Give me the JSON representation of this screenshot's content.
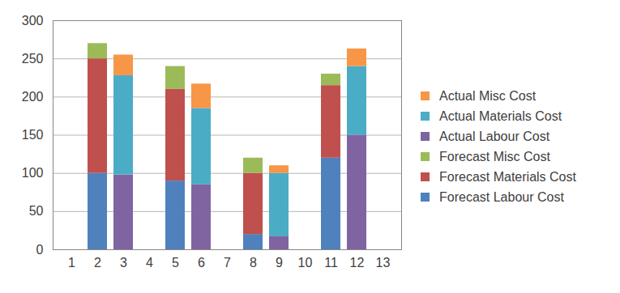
{
  "chart_data": {
    "type": "bar",
    "stacked": true,
    "grid": true,
    "legend": "right",
    "categories": [
      "1",
      "2",
      "3",
      "4",
      "5",
      "6",
      "7",
      "8",
      "9",
      "10",
      "11",
      "12",
      "13"
    ],
    "ylim": [
      0,
      300
    ],
    "yticks": [
      0,
      50,
      100,
      150,
      200,
      250,
      300
    ],
    "series": [
      {
        "name": "Forecast Labour Cost",
        "color": "#4f81bd",
        "values": [
          null,
          100,
          null,
          null,
          90,
          null,
          null,
          20,
          null,
          null,
          120,
          null,
          null
        ]
      },
      {
        "name": "Forecast Materials Cost",
        "color": "#c0504d",
        "values": [
          null,
          150,
          null,
          null,
          120,
          null,
          null,
          80,
          null,
          null,
          95,
          null,
          null
        ]
      },
      {
        "name": "Forecast Misc Cost",
        "color": "#9bbb59",
        "values": [
          null,
          20,
          null,
          null,
          30,
          null,
          null,
          20,
          null,
          null,
          15,
          null,
          null
        ]
      },
      {
        "name": "Actual Labour Cost",
        "color": "#8064a2",
        "values": [
          null,
          null,
          98,
          null,
          null,
          85,
          null,
          null,
          17,
          null,
          null,
          150,
          null
        ]
      },
      {
        "name": "Actual Materials Cost",
        "color": "#4bacc6",
        "values": [
          null,
          null,
          130,
          null,
          null,
          100,
          null,
          null,
          83,
          null,
          null,
          90,
          null
        ]
      },
      {
        "name": "Actual Misc Cost",
        "color": "#f79646",
        "values": [
          null,
          null,
          27,
          null,
          null,
          32,
          null,
          null,
          10,
          null,
          null,
          23,
          null
        ]
      }
    ]
  }
}
